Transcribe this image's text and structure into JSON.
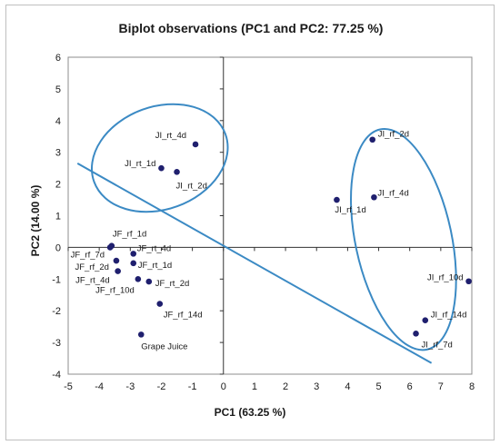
{
  "chart_data": {
    "type": "scatter",
    "title": "Biplot observations (PC1 and PC2: 77.25 %)",
    "xlabel": "PC1 (63.25 %)",
    "ylabel": "PC2 (14.00 %)",
    "xlim": [
      -5,
      8
    ],
    "ylim": [
      -4,
      6
    ],
    "xticks": [
      "-5",
      "-4",
      "-3",
      "-2",
      "-1",
      "0",
      "1",
      "2",
      "3",
      "4",
      "5",
      "6",
      "7",
      "8"
    ],
    "yticks": [
      "-4",
      "-3",
      "-2",
      "-1",
      "0",
      "1",
      "2",
      "3",
      "4",
      "5",
      "6"
    ],
    "grid": false,
    "points": [
      {
        "label": "JI_rt_4d",
        "x": -0.9,
        "y": 3.25
      },
      {
        "label": "JI_rt_1d",
        "x": -2.0,
        "y": 2.5
      },
      {
        "label": "JI_rt_2d",
        "x": -1.5,
        "y": 2.38
      },
      {
        "label": "JI_rf_2d",
        "x": 4.8,
        "y": 3.4
      },
      {
        "label": "JI_rf_4d",
        "x": 4.85,
        "y": 1.58
      },
      {
        "label": "JI_rf_1d",
        "x": 3.65,
        "y": 1.5
      },
      {
        "label": "JI_rf_10d",
        "x": 7.9,
        "y": -1.07
      },
      {
        "label": "JI_rf_14d",
        "x": 6.5,
        "y": -2.3
      },
      {
        "label": "JI_rf_7d",
        "x": 6.2,
        "y": -2.72
      },
      {
        "label": "JF_rf_1d",
        "x": -3.6,
        "y": 0.05
      },
      {
        "label": "JF_rf_7d",
        "x": -3.65,
        "y": 0.0
      },
      {
        "label": "JF_rf_2d",
        "x": -3.45,
        "y": -0.42
      },
      {
        "label": "JF_rt_4d",
        "x": -2.9,
        "y": -0.2
      },
      {
        "label": "JF_rt_1d",
        "x": -2.9,
        "y": -0.5
      },
      {
        "label": "JF_rt_4d",
        "x": -3.4,
        "y": -0.75
      },
      {
        "label": "JF_rf_10d",
        "x": -2.75,
        "y": -1.0
      },
      {
        "label": "JF_rt_2d",
        "x": -2.4,
        "y": -1.08
      },
      {
        "label": "JF_rf_14d",
        "x": -2.05,
        "y": -1.78
      },
      {
        "label": "Grape Juice",
        "x": -2.65,
        "y": -2.75
      }
    ],
    "line": {
      "x": [
        -4.7,
        6.7
      ],
      "y": [
        2.65,
        -3.65
      ]
    },
    "ellipses": [
      {
        "cx": -2.05,
        "cy": 2.82,
        "rx": 2.25,
        "ry": 1.62,
        "rotation": -20
      },
      {
        "cx": 5.8,
        "cy": 0.25,
        "rx": 1.55,
        "ry": 3.55,
        "rotation": -12
      }
    ],
    "colors": {
      "point": "#1f1f6e",
      "line": "#3b8ac4",
      "axis": "#333333"
    }
  }
}
